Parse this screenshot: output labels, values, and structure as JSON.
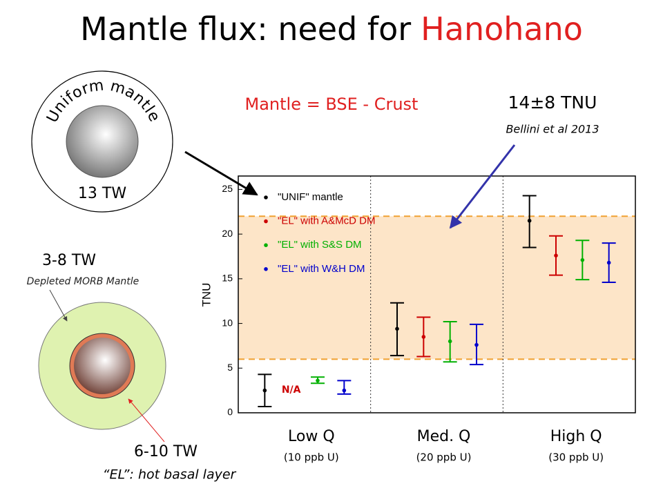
{
  "slide": {
    "title": "Mantle flux: need for",
    "title_highlight": "Hanohano",
    "equation": "Mantle = BSE - Crust",
    "measurement": "14±8 TNU",
    "reference": "Bellini et al 2013",
    "uniform_model": {
      "label": "Uniform mantle",
      "power": "13 TW"
    },
    "layered_model": {
      "depleted_power": "3-8 TW",
      "depleted_label": "Depleted MORB Mantle",
      "layer_power": "6-10 TW",
      "layer_label": "“EL”: hot basal layer"
    }
  },
  "chart_data": {
    "type": "errorbar",
    "y_label": "TNU",
    "categories": [
      "Low Q",
      "Med. Q",
      "High Q"
    ],
    "category_notes": [
      "(10 ppb U)",
      "(20 ppb U)",
      "(30 ppb U)"
    ],
    "ylim": [
      0,
      26.5
    ],
    "yticks": [
      0,
      5,
      10,
      15,
      20,
      25
    ],
    "band": [
      6,
      22
    ],
    "band_color": "#fde5c8",
    "band_line_color": "#f0a030",
    "annotation": "N/A",
    "series": [
      {
        "name": "\"UNIF\" mantle",
        "color": "#000000",
        "values": [
          2.5,
          9.4,
          21.5
        ],
        "lower": [
          0.7,
          6.4,
          18.5
        ],
        "upper": [
          4.3,
          12.3,
          24.3
        ]
      },
      {
        "name": "\"EL\" with A&McD DM",
        "color": "#cc0000",
        "values": [
          null,
          8.5,
          17.6
        ],
        "lower": [
          null,
          6.3,
          15.4
        ],
        "upper": [
          null,
          10.7,
          19.8
        ]
      },
      {
        "name": "\"EL\" with S&S DM",
        "color": "#00b000",
        "values": [
          3.6,
          8.0,
          17.1
        ],
        "lower": [
          3.3,
          5.7,
          14.9
        ],
        "upper": [
          4.0,
          10.2,
          19.3
        ]
      },
      {
        "name": "\"EL\" with W&H DM",
        "color": "#0000cc",
        "values": [
          2.5,
          7.6,
          16.8
        ],
        "lower": [
          2.1,
          5.4,
          14.6
        ],
        "upper": [
          3.6,
          9.9,
          19.0
        ]
      }
    ]
  }
}
